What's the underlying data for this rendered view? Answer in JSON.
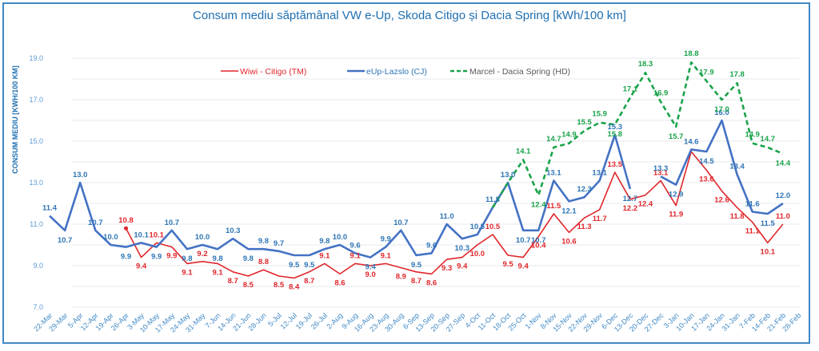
{
  "chart_data": {
    "type": "line",
    "title": "Consum mediu săptămânal VW e-Up, Skoda Citigo și Dacia Spring [kWh/100 km]",
    "xlabel": "",
    "ylabel": "CONSUM MEDIU [KWH/100 KM]",
    "ylim": [
      7.0,
      20.0
    ],
    "yticks": [
      7.0,
      9.0,
      11.0,
      13.0,
      15.0,
      17.0,
      19.0
    ],
    "ytick_labels": [
      "7.0",
      "9.0",
      "11.0",
      "13.0",
      "15.0",
      "17.0",
      "19.0"
    ],
    "minor_grid_step": 1.0,
    "grid": true,
    "legend_position": "top-center",
    "categories": [
      "22-Mar",
      "29-Mar",
      "5-Apr",
      "12-Apr",
      "19-Apr",
      "26-Apr",
      "3-May",
      "10-May",
      "17-May",
      "24-May",
      "31-May",
      "7-Jun",
      "14-Jun",
      "21-Jun",
      "28-Jun",
      "5-Jul",
      "12-Jul",
      "19-Jul",
      "26-Jul",
      "2-Aug",
      "9-Aug",
      "16-Aug",
      "23-Aug",
      "30-Aug",
      "6-Sep",
      "13-Sep",
      "20-Sep",
      "27-Sep",
      "4-Oct",
      "11-Oct",
      "18-Oct",
      "25-Oct",
      "1-Nov",
      "8-Nov",
      "15-Nov",
      "22-Nov",
      "29-Nov",
      "6-Dec",
      "13-Dec",
      "20-Dec",
      "27-Dec",
      "3-Jan",
      "10-Jan",
      "17-Jan",
      "24-Jan",
      "31-Jan",
      "7-Feb",
      "14-Feb",
      "21-Feb",
      "28-Feb"
    ],
    "series": [
      {
        "name": "Wiwi - Citigo (TM)",
        "color": "#e0262b",
        "style": "solid-thin",
        "values": [
          null,
          null,
          null,
          null,
          null,
          10.8,
          9.4,
          10.1,
          9.9,
          9.1,
          9.2,
          9.1,
          8.7,
          8.5,
          8.8,
          8.5,
          8.4,
          8.7,
          9.1,
          8.6,
          9.1,
          9.0,
          9.1,
          8.9,
          8.7,
          8.6,
          9.3,
          9.4,
          10.0,
          10.5,
          9.5,
          9.4,
          10.4,
          11.5,
          10.6,
          11.3,
          11.7,
          13.5,
          12.2,
          12.4,
          13.1,
          11.9,
          14.5,
          13.6,
          12.6,
          11.8,
          11.1,
          10.1,
          11.0,
          null
        ],
        "labels": [
          null,
          null,
          null,
          null,
          null,
          "10.8",
          "9.4",
          "10.1",
          "9.9",
          "9.1",
          "9.2",
          "9.1",
          "8.7",
          "8.5",
          "8.8",
          "8.5",
          "8.4",
          "8.7",
          "9.1",
          "8.6",
          "9.1",
          "9.0",
          "9.1",
          "8.9",
          "8.7",
          "8.6",
          "9.3",
          "9.4",
          "10.0",
          "10.5",
          "9.5",
          "9.4",
          "10.4",
          "11.5",
          "10.6",
          "11.3",
          "11.7",
          "13.5",
          "12.2",
          "12.4",
          "13.1",
          "11.9",
          null,
          "13.6",
          "12.6",
          "11.8",
          "11.1",
          "10.1",
          "11.0",
          null
        ]
      },
      {
        "name": "eUp-Lazslo (CJ)",
        "color": "#4472c4",
        "label_color": "#2e75b6",
        "style": "solid-thick",
        "values": [
          11.4,
          10.7,
          13.0,
          10.7,
          10.0,
          9.9,
          10.1,
          9.9,
          10.7,
          9.8,
          10.0,
          9.8,
          10.3,
          9.8,
          9.8,
          9.7,
          9.5,
          9.5,
          9.8,
          10.0,
          9.6,
          9.4,
          9.9,
          10.7,
          9.5,
          9.6,
          11.0,
          10.3,
          10.5,
          11.8,
          13.0,
          10.7,
          10.7,
          13.1,
          12.1,
          12.3,
          13.1,
          15.3,
          12.7,
          null,
          13.3,
          12.9,
          14.6,
          14.5,
          16.0,
          13.4,
          11.6,
          11.5,
          12.0,
          null
        ],
        "labels": [
          "11.4",
          "10.7",
          "13.0",
          "10.7",
          "10.0",
          "9.9",
          "10.1",
          "9.9",
          "10.7",
          "9.8",
          "10.0",
          "9.8",
          "10.3",
          "9.8",
          "9.8",
          "9.7",
          "9.5",
          "9.5",
          "9.8",
          "10.0",
          "9.6",
          "9.4",
          "9.9",
          "10.7",
          "9.5",
          "9.6",
          "11.0",
          "10.3",
          "10.5",
          "11.8",
          "13.0",
          "10.7",
          "10.7",
          "13.1",
          "12.1",
          "12.3",
          "13.1",
          "15.3",
          "12.7",
          null,
          "13.3",
          "12.9",
          "14.6",
          "14.5",
          "16.0",
          "13.4",
          "11.6",
          "11.5",
          "12.0",
          null
        ]
      },
      {
        "name": "Marcel - Dacia Spring (HD)",
        "color": "#1aa34a",
        "style": "dashed",
        "values": [
          null,
          null,
          null,
          null,
          null,
          null,
          null,
          null,
          null,
          null,
          null,
          null,
          null,
          null,
          null,
          null,
          null,
          null,
          null,
          null,
          null,
          null,
          null,
          null,
          null,
          null,
          null,
          null,
          null,
          11.8,
          13.0,
          14.1,
          12.4,
          14.7,
          14.9,
          15.5,
          15.9,
          15.8,
          17.1,
          18.3,
          16.9,
          15.7,
          18.8,
          17.9,
          17.0,
          17.8,
          14.9,
          14.7,
          14.4,
          null
        ],
        "labels": [
          null,
          null,
          null,
          null,
          null,
          null,
          null,
          null,
          null,
          null,
          null,
          null,
          null,
          null,
          null,
          null,
          null,
          null,
          null,
          null,
          null,
          null,
          null,
          null,
          null,
          null,
          null,
          null,
          null,
          null,
          null,
          "14.1",
          "12.4",
          "14.7",
          "14.9",
          "15.5",
          "15.9",
          "15.8",
          "17.1",
          "18.3",
          "16.9",
          "15.7",
          "18.8",
          "17.9",
          "17.0",
          "17.8",
          "14.9",
          "14.7",
          "14.4",
          null
        ]
      }
    ]
  }
}
